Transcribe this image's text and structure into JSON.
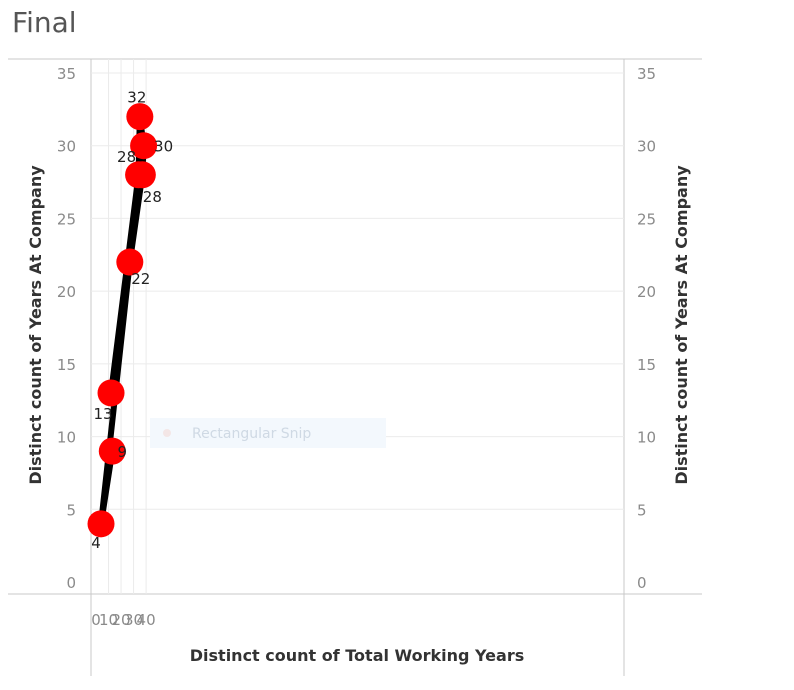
{
  "title": "Final",
  "snip_overlay": "Rectangular Snip",
  "chart_data": {
    "type": "line",
    "xlabel": "Distinct count of Total Working Years",
    "ylabel_left": "Distinct count of Years At Company",
    "ylabel_right": "Distinct count of Years At Company",
    "xlim": [
      0,
      42
    ],
    "ylim": [
      0,
      35
    ],
    "x_ticks": [
      0,
      10,
      20,
      30,
      40
    ],
    "y_ticks": [
      0,
      5,
      10,
      15,
      20,
      25,
      30,
      35
    ],
    "grid": true,
    "series": [
      {
        "color": "#000000",
        "marker_color": "#ff0000",
        "points": [
          {
            "x": 13,
            "y": 9,
            "label": "9"
          },
          {
            "x": 4,
            "y": 4,
            "label": "4"
          },
          {
            "x": 27,
            "y": 22,
            "label": "22"
          },
          {
            "x": 37,
            "y": 28,
            "label": "28"
          },
          {
            "x": 38,
            "y": 30,
            "label": "30"
          },
          {
            "x": 35,
            "y": 32,
            "label": "32"
          },
          {
            "x": 34,
            "y": 28,
            "label": "28"
          },
          {
            "x": 12,
            "y": 13,
            "label": "13"
          }
        ]
      }
    ]
  }
}
